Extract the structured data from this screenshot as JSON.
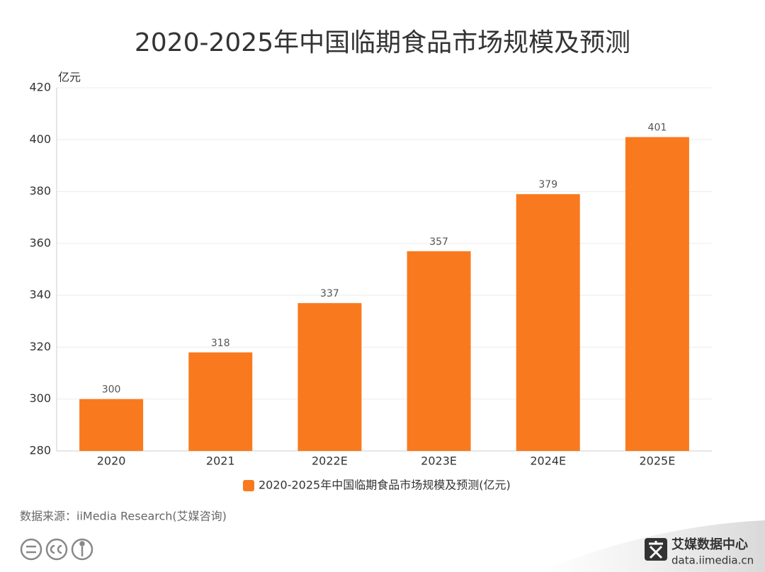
{
  "chart_data": {
    "type": "bar",
    "title": "2020-2025年中国临期食品市场规模及预测",
    "y_unit": "亿元",
    "categories": [
      "2020",
      "2021",
      "2022E",
      "2023E",
      "2024E",
      "2025E"
    ],
    "series": [
      {
        "name": "2020-2025年中国临期食品市场规模及预测(亿元)",
        "color": "#f97a1e",
        "values": [
          300,
          318,
          337,
          357,
          379,
          401
        ]
      }
    ],
    "ylim": [
      280,
      420
    ],
    "yticks": [
      280,
      300,
      320,
      340,
      360,
      380,
      400,
      420
    ],
    "grid": true,
    "legend": "bottom"
  },
  "footer": {
    "source": "数据来源：iiMedia Research(艾媒咨询)",
    "brand": "艾媒数据中心",
    "url": "data.iimedia.cn"
  }
}
